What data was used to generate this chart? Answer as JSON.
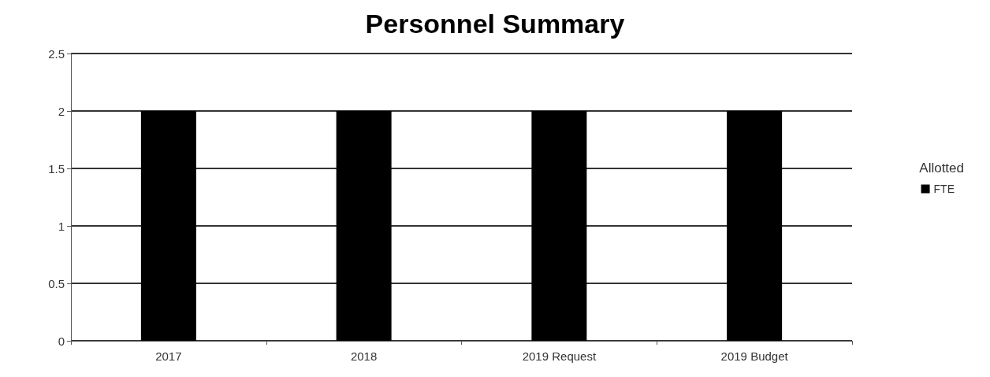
{
  "chart_data": {
    "type": "bar",
    "title": "Personnel Summary",
    "categories": [
      "2017",
      "2018",
      "2019 Request",
      "2019 Budget"
    ],
    "series": [
      {
        "name": "FTE",
        "color": "#000000",
        "values": [
          2,
          2,
          2,
          2
        ]
      }
    ],
    "ylim": [
      0,
      2.5
    ],
    "yticks": [
      0,
      0.5,
      1,
      1.5,
      2,
      2.5
    ],
    "grid": "y",
    "legend": "right",
    "legend_title": "Allotted"
  }
}
